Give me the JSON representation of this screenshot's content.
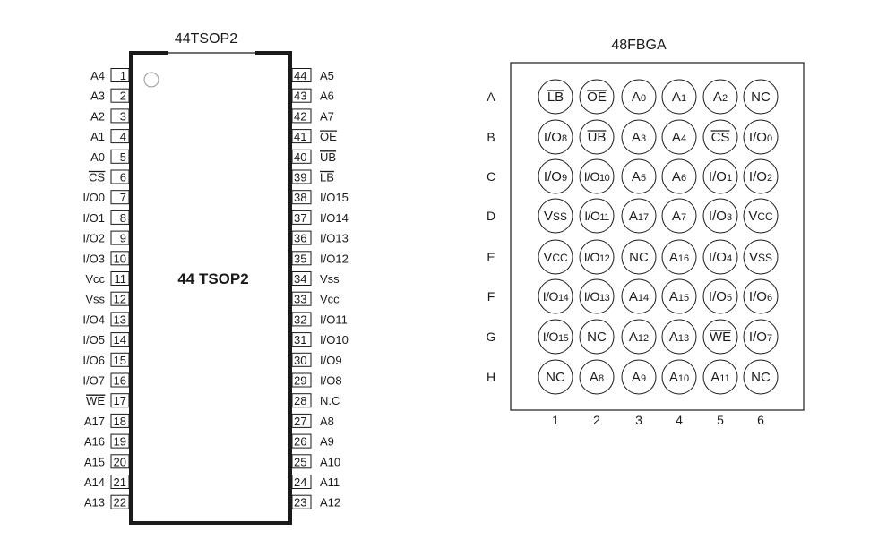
{
  "tsop": {
    "title": "44TSOP2",
    "body_label": "44 TSOP2",
    "left_pins": [
      {
        "num": "1",
        "label": "A4"
      },
      {
        "num": "2",
        "label": "A3"
      },
      {
        "num": "3",
        "label": "A2"
      },
      {
        "num": "4",
        "label": "A1"
      },
      {
        "num": "5",
        "label": "A0"
      },
      {
        "num": "6",
        "label": "CS",
        "bar": true
      },
      {
        "num": "7",
        "label": "I/O0"
      },
      {
        "num": "8",
        "label": "I/O1"
      },
      {
        "num": "9",
        "label": "I/O2"
      },
      {
        "num": "10",
        "label": "I/O3"
      },
      {
        "num": "11",
        "label": "Vcc"
      },
      {
        "num": "12",
        "label": "Vss"
      },
      {
        "num": "13",
        "label": "I/O4"
      },
      {
        "num": "14",
        "label": "I/O5"
      },
      {
        "num": "15",
        "label": "I/O6"
      },
      {
        "num": "16",
        "label": "I/O7"
      },
      {
        "num": "17",
        "label": "WE",
        "bar": true
      },
      {
        "num": "18",
        "label": "A17"
      },
      {
        "num": "19",
        "label": "A16"
      },
      {
        "num": "20",
        "label": "A15"
      },
      {
        "num": "21",
        "label": "A14"
      },
      {
        "num": "22",
        "label": "A13"
      }
    ],
    "right_pins": [
      {
        "num": "44",
        "label": "A5"
      },
      {
        "num": "43",
        "label": "A6"
      },
      {
        "num": "42",
        "label": "A7"
      },
      {
        "num": "41",
        "label": "OE",
        "bar": true
      },
      {
        "num": "40",
        "label": "UB",
        "bar": true
      },
      {
        "num": "39",
        "label": "LB",
        "bar": true
      },
      {
        "num": "38",
        "label": "I/O15"
      },
      {
        "num": "37",
        "label": "I/O14"
      },
      {
        "num": "36",
        "label": "I/O13"
      },
      {
        "num": "35",
        "label": "I/O12"
      },
      {
        "num": "34",
        "label": "Vss"
      },
      {
        "num": "33",
        "label": "Vcc"
      },
      {
        "num": "32",
        "label": "I/O11"
      },
      {
        "num": "31",
        "label": "I/O10"
      },
      {
        "num": "30",
        "label": "I/O9"
      },
      {
        "num": "29",
        "label": "I/O8"
      },
      {
        "num": "28",
        "label": "N.C"
      },
      {
        "num": "27",
        "label": "A8"
      },
      {
        "num": "26",
        "label": "A9"
      },
      {
        "num": "25",
        "label": "A10"
      },
      {
        "num": "24",
        "label": "A11"
      },
      {
        "num": "23",
        "label": "A12"
      }
    ]
  },
  "bga": {
    "title": "48FBGA",
    "row_labels": [
      "A",
      "B",
      "C",
      "D",
      "E",
      "F",
      "G",
      "H"
    ],
    "col_labels": [
      "1",
      "2",
      "3",
      "4",
      "5",
      "6"
    ],
    "balls": [
      [
        {
          "m": "LB",
          "bar": true
        },
        {
          "m": "OE",
          "bar": true
        },
        {
          "m": "A",
          "s": "0"
        },
        {
          "m": "A",
          "s": "1"
        },
        {
          "m": "A",
          "s": "2"
        },
        {
          "m": "NC"
        }
      ],
      [
        {
          "m": "I/O",
          "s": "8"
        },
        {
          "m": "UB",
          "bar": true
        },
        {
          "m": "A",
          "s": "3"
        },
        {
          "m": "A",
          "s": "4"
        },
        {
          "m": "CS",
          "bar": true
        },
        {
          "m": "I/O",
          "s": "0"
        }
      ],
      [
        {
          "m": "I/O",
          "s": "9"
        },
        {
          "m": "I/O",
          "s": "10"
        },
        {
          "m": "A",
          "s": "5"
        },
        {
          "m": "A",
          "s": "6"
        },
        {
          "m": "I/O",
          "s": "1"
        },
        {
          "m": "I/O",
          "s": "2"
        }
      ],
      [
        {
          "m": "V",
          "s": "SS"
        },
        {
          "m": "I/O",
          "s": "11"
        },
        {
          "m": "A",
          "s": "17"
        },
        {
          "m": "A",
          "s": "7"
        },
        {
          "m": "I/O",
          "s": "3"
        },
        {
          "m": "V",
          "s": "CC"
        }
      ],
      [
        {
          "m": "V",
          "s": "CC"
        },
        {
          "m": "I/O",
          "s": "12"
        },
        {
          "m": "NC"
        },
        {
          "m": "A",
          "s": "16"
        },
        {
          "m": "I/O",
          "s": "4"
        },
        {
          "m": "V",
          "s": "SS"
        }
      ],
      [
        {
          "m": "I/O",
          "s": "14"
        },
        {
          "m": "I/O",
          "s": "13"
        },
        {
          "m": "A",
          "s": "14"
        },
        {
          "m": "A",
          "s": "15"
        },
        {
          "m": "I/O",
          "s": "5"
        },
        {
          "m": "I/O",
          "s": "6"
        }
      ],
      [
        {
          "m": "I/O",
          "s": "15"
        },
        {
          "m": "NC"
        },
        {
          "m": "A",
          "s": "12"
        },
        {
          "m": "A",
          "s": "13"
        },
        {
          "m": "WE",
          "bar": true
        },
        {
          "m": "I/O",
          "s": "7"
        }
      ],
      [
        {
          "m": "NC"
        },
        {
          "m": "A",
          "s": "8"
        },
        {
          "m": "A",
          "s": "9"
        },
        {
          "m": "A",
          "s": "10"
        },
        {
          "m": "A",
          "s": "11"
        },
        {
          "m": "NC"
        }
      ]
    ]
  }
}
